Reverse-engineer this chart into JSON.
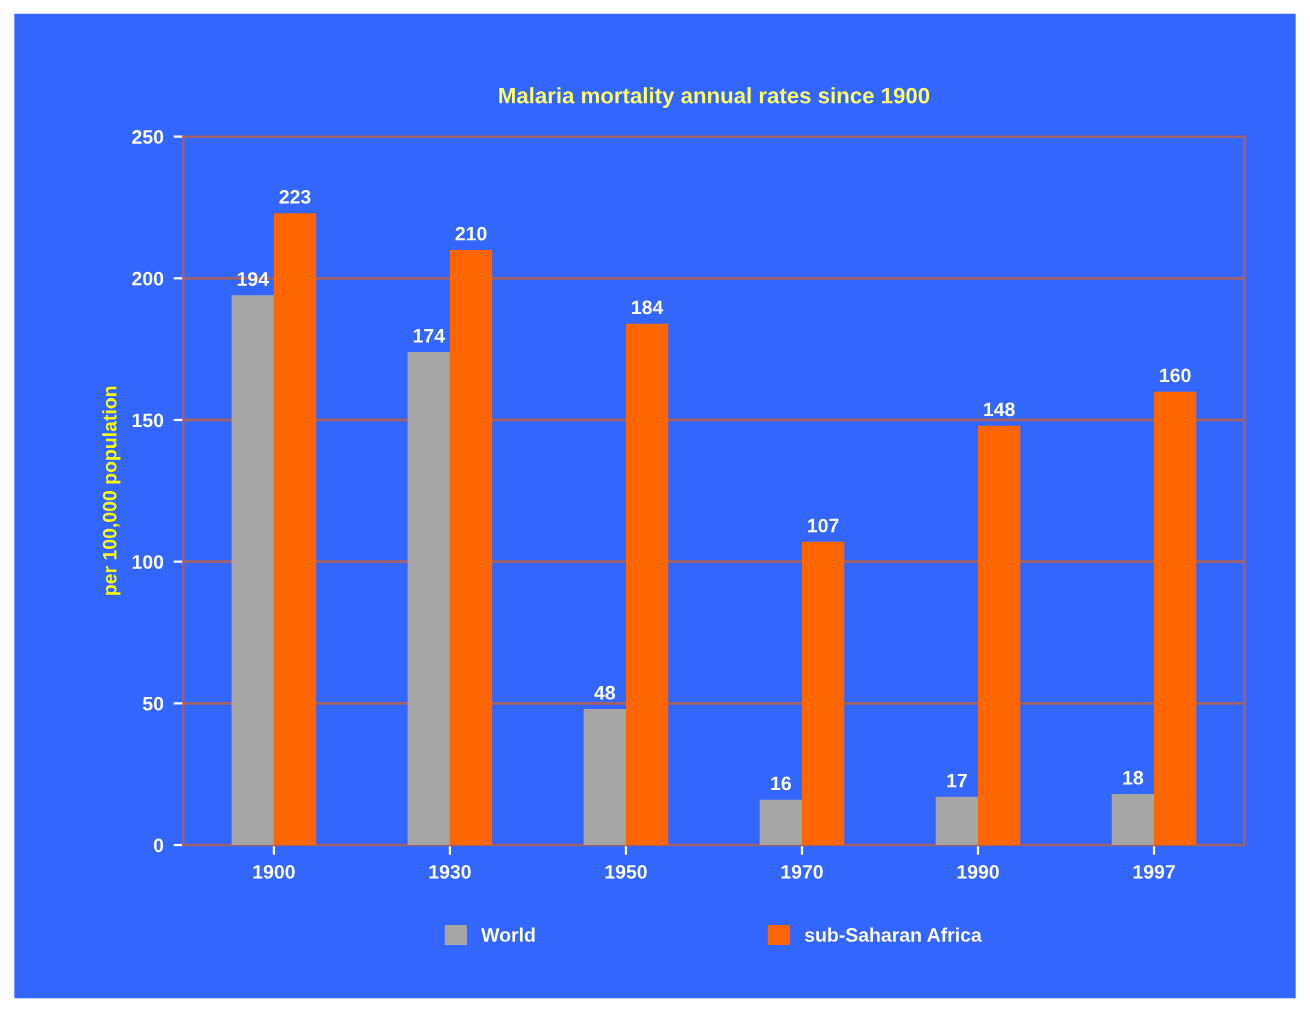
{
  "chart_data": {
    "type": "bar",
    "title": "Malaria mortality annual rates since 1900",
    "ylabel": "per 100,000 population",
    "categories": [
      "1900",
      "1930",
      "1950",
      "1970",
      "1990",
      "1997"
    ],
    "series": [
      {
        "name": "World",
        "color": "#a6a6a6",
        "values": [
          194,
          174,
          48,
          16,
          17,
          18
        ]
      },
      {
        "name": "sub-Saharan Africa",
        "color": "#ff6600",
        "values": [
          223,
          210,
          184,
          107,
          148,
          160
        ]
      }
    ],
    "ylim": [
      0,
      250
    ],
    "yticks": [
      0,
      50,
      100,
      150,
      200,
      250
    ],
    "grid": "y",
    "legend": "bottom",
    "data_labels": true
  }
}
